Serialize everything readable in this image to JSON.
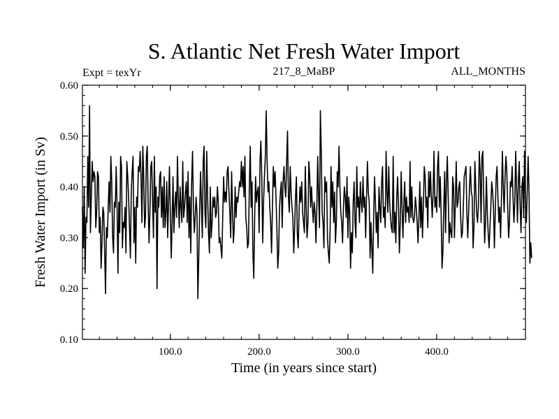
{
  "chart_data": {
    "type": "line",
    "title": "S. Atlantic Net Fresh Water Import",
    "subtitle_left": "Expt = texYr",
    "subtitle_center": "217_8_MaBP",
    "subtitle_right": "ALL_MONTHS",
    "xlabel": "Time (in years since start)",
    "ylabel": "Fresh Water Import (in Sv)",
    "xlim": [
      1,
      500
    ],
    "ylim": [
      0.1,
      0.6
    ],
    "x_ticks": [
      100,
      200,
      300,
      400
    ],
    "x_tick_labels": [
      "100.0",
      "200.0",
      "300.0",
      "400.0"
    ],
    "y_ticks": [
      0.1,
      0.2,
      0.3,
      0.4,
      0.5,
      0.6
    ],
    "y_tick_labels": [
      "0.10",
      "0.20",
      "0.30",
      "0.40",
      "0.50",
      "0.60"
    ],
    "grid": false,
    "line_color": "#000000",
    "series": [
      {
        "x_start": 1,
        "x_step": 1,
        "values": [
          0.36,
          0.28,
          0.4,
          0.23,
          0.34,
          0.33,
          0.46,
          0.36,
          0.56,
          0.31,
          0.38,
          0.45,
          0.41,
          0.43,
          0.42,
          0.32,
          0.35,
          0.43,
          0.42,
          0.31,
          0.34,
          0.24,
          0.29,
          0.36,
          0.35,
          0.27,
          0.19,
          0.32,
          0.3,
          0.36,
          0.41,
          0.35,
          0.46,
          0.41,
          0.3,
          0.27,
          0.37,
          0.36,
          0.44,
          0.36,
          0.23,
          0.37,
          0.31,
          0.46,
          0.44,
          0.28,
          0.33,
          0.32,
          0.36,
          0.27,
          0.45,
          0.42,
          0.38,
          0.32,
          0.26,
          0.39,
          0.43,
          0.46,
          0.29,
          0.36,
          0.25,
          0.38,
          0.36,
          0.44,
          0.43,
          0.47,
          0.42,
          0.33,
          0.48,
          0.42,
          0.32,
          0.34,
          0.46,
          0.48,
          0.37,
          0.29,
          0.35,
          0.44,
          0.45,
          0.37,
          0.3,
          0.46,
          0.35,
          0.4,
          0.2,
          0.38,
          0.36,
          0.42,
          0.43,
          0.34,
          0.4,
          0.32,
          0.42,
          0.32,
          0.35,
          0.41,
          0.3,
          0.37,
          0.44,
          0.35,
          0.26,
          0.33,
          0.42,
          0.31,
          0.36,
          0.39,
          0.34,
          0.46,
          0.38,
          0.32,
          0.4,
          0.36,
          0.33,
          0.45,
          0.34,
          0.36,
          0.39,
          0.41,
          0.33,
          0.43,
          0.3,
          0.38,
          0.27,
          0.41,
          0.47,
          0.36,
          0.31,
          0.34,
          0.38,
          0.35,
          0.18,
          0.26,
          0.35,
          0.43,
          0.37,
          0.3,
          0.45,
          0.48,
          0.35,
          0.32,
          0.47,
          0.38,
          0.31,
          0.27,
          0.4,
          0.3,
          0.33,
          0.38,
          0.36,
          0.38,
          0.34,
          0.35,
          0.4,
          0.37,
          0.29,
          0.3,
          0.28,
          0.26,
          0.34,
          0.42,
          0.37,
          0.39,
          0.37,
          0.43,
          0.44,
          0.39,
          0.35,
          0.3,
          0.43,
          0.36,
          0.29,
          0.32,
          0.4,
          0.34,
          0.38,
          0.37,
          0.39,
          0.41,
          0.4,
          0.45,
          0.4,
          0.44,
          0.38,
          0.46,
          0.34,
          0.32,
          0.28,
          0.29,
          0.4,
          0.48,
          0.36,
          0.41,
          0.27,
          0.22,
          0.34,
          0.42,
          0.37,
          0.39,
          0.4,
          0.31,
          0.45,
          0.49,
          0.42,
          0.29,
          0.37,
          0.42,
          0.46,
          0.55,
          0.45,
          0.39,
          0.41,
          0.36,
          0.33,
          0.27,
          0.36,
          0.44,
          0.4,
          0.43,
          0.38,
          0.32,
          0.24,
          0.27,
          0.36,
          0.39,
          0.41,
          0.32,
          0.41,
          0.44,
          0.4,
          0.38,
          0.45,
          0.51,
          0.38,
          0.35,
          0.44,
          0.39,
          0.36,
          0.34,
          0.27,
          0.32,
          0.38,
          0.42,
          0.31,
          0.28,
          0.35,
          0.4,
          0.37,
          0.41,
          0.35,
          0.33,
          0.31,
          0.44,
          0.36,
          0.3,
          0.33,
          0.45,
          0.42,
          0.36,
          0.4,
          0.36,
          0.33,
          0.37,
          0.35,
          0.29,
          0.36,
          0.46,
          0.38,
          0.32,
          0.55,
          0.47,
          0.35,
          0.33,
          0.28,
          0.42,
          0.39,
          0.41,
          0.3,
          0.27,
          0.25,
          0.32,
          0.44,
          0.36,
          0.41,
          0.33,
          0.39,
          0.29,
          0.33,
          0.43,
          0.4,
          0.48,
          0.4,
          0.35,
          0.33,
          0.29,
          0.36,
          0.4,
          0.38,
          0.34,
          0.42,
          0.3,
          0.38,
          0.35,
          0.24,
          0.31,
          0.27,
          0.37,
          0.41,
          0.33,
          0.3,
          0.44,
          0.36,
          0.38,
          0.33,
          0.41,
          0.37,
          0.35,
          0.42,
          0.36,
          0.38,
          0.3,
          0.38,
          0.45,
          0.39,
          0.37,
          0.26,
          0.33,
          0.28,
          0.23,
          0.34,
          0.42,
          0.37,
          0.31,
          0.35,
          0.28,
          0.4,
          0.36,
          0.33,
          0.41,
          0.44,
          0.34,
          0.36,
          0.32,
          0.47,
          0.39,
          0.35,
          0.44,
          0.37,
          0.34,
          0.32,
          0.31,
          0.46,
          0.31,
          0.35,
          0.29,
          0.38,
          0.42,
          0.36,
          0.27,
          0.33,
          0.43,
          0.36,
          0.3,
          0.37,
          0.41,
          0.33,
          0.38,
          0.35,
          0.36,
          0.33,
          0.45,
          0.34,
          0.4,
          0.34,
          0.33,
          0.34,
          0.38,
          0.36,
          0.33,
          0.29,
          0.34,
          0.41,
          0.32,
          0.38,
          0.3,
          0.36,
          0.44,
          0.42,
          0.36,
          0.38,
          0.32,
          0.43,
          0.38,
          0.43,
          0.38,
          0.34,
          0.39,
          0.47,
          0.36,
          0.38,
          0.35,
          0.44,
          0.47,
          0.36,
          0.42,
          0.35,
          0.24,
          0.27,
          0.36,
          0.43,
          0.31,
          0.41,
          0.46,
          0.38,
          0.29,
          0.33,
          0.31,
          0.3,
          0.42,
          0.4,
          0.3,
          0.37,
          0.45,
          0.36,
          0.37,
          0.4,
          0.41,
          0.34,
          0.3,
          0.31,
          0.36,
          0.42,
          0.43,
          0.44,
          0.35,
          0.3,
          0.35,
          0.4,
          0.44,
          0.39,
          0.38,
          0.28,
          0.32,
          0.45,
          0.4,
          0.35,
          0.33,
          0.36,
          0.47,
          0.43,
          0.33,
          0.46,
          0.47,
          0.38,
          0.29,
          0.33,
          0.42,
          0.35,
          0.31,
          0.28,
          0.32,
          0.36,
          0.41,
          0.39,
          0.36,
          0.28,
          0.35,
          0.42,
          0.44,
          0.38,
          0.33,
          0.36,
          0.3,
          0.38,
          0.47,
          0.4,
          0.35,
          0.42,
          0.46,
          0.43,
          0.36,
          0.3,
          0.33,
          0.41,
          0.4,
          0.44,
          0.38,
          0.33,
          0.37,
          0.47,
          0.4,
          0.33,
          0.41,
          0.45,
          0.36,
          0.31,
          0.4,
          0.42,
          0.34,
          0.47,
          0.37,
          0.33,
          0.39,
          0.46,
          0.39,
          0.25,
          0.29,
          0.26
        ]
      }
    ]
  }
}
